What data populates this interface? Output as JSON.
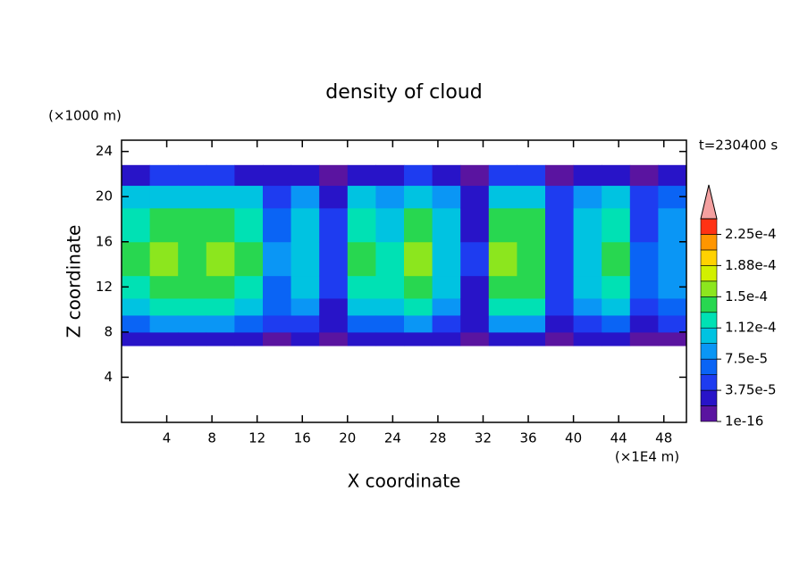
{
  "chart_data": {
    "type": "contour",
    "title": "density of cloud",
    "x_label": "X coordinate",
    "y_label": "Z coordinate",
    "x_unit": "(×1E4 m)",
    "y_unit": "(×1000 m)",
    "annotation": "t=230400 s",
    "xlim": [
      0,
      50
    ],
    "ylim": [
      0,
      25
    ],
    "xticks": [
      4,
      8,
      12,
      16,
      20,
      24,
      28,
      32,
      36,
      40,
      44,
      48
    ],
    "yticks": [
      4,
      8,
      12,
      16,
      20,
      24
    ],
    "x_edges": [
      0,
      2.5,
      5,
      7.5,
      10,
      12.5,
      15,
      17.5,
      20,
      22.5,
      25,
      27.5,
      30,
      32.5,
      35,
      37.5,
      40,
      42.5,
      45,
      47.5,
      50
    ],
    "y_edges": [
      6.8,
      8,
      9.5,
      11,
      13,
      16,
      19,
      21,
      22.8
    ],
    "z": [
      [
        2.7e-05,
        7.2e-05,
        0.000108,
        0.00013,
        0.00014,
        0.000126,
        9.9e-05,
        3.6e-05
      ],
      [
        3e-05,
        8e-05,
        0.00012,
        0.000145,
        0.000155,
        0.00014,
        0.00011,
        4e-05
      ],
      [
        2.8e-05,
        7.6e-05,
        0.000114,
        0.000138,
        0.000147,
        0.000133,
        0.000105,
        3.8e-05
      ],
      [
        3e-05,
        8e-05,
        0.00012,
        0.000145,
        0.000155,
        0.00014,
        0.00011,
        4e-05
      ],
      [
        2.7e-05,
        7.2e-05,
        0.000108,
        0.00013,
        0.00014,
        0.000126,
        9.9e-05,
        3.6e-05
      ],
      [
        1.5e-05,
        4e-05,
        6e-05,
        7.3e-05,
        7.8e-05,
        7e-05,
        5.5e-05,
        2e-05
      ],
      [
        2.1e-05,
        5.6e-05,
        8.4e-05,
        0.000102,
        0.000109,
        9.8e-05,
        7.7e-05,
        2.8e-05
      ],
      [
        9e-06,
        2.4e-05,
        3.6e-05,
        4.4e-05,
        4.7e-05,
        4.2e-05,
        3.3e-05,
        1.2e-05
      ],
      [
        2.7e-05,
        7.2e-05,
        0.000108,
        0.00013,
        0.00014,
        0.000126,
        9.9e-05,
        3.6e-05
      ],
      [
        2.4e-05,
        6.4e-05,
        9.6e-05,
        0.000116,
        0.000124,
        0.000112,
        8.8e-05,
        3.2e-05
      ],
      [
        3e-05,
        8e-05,
        0.00012,
        0.000145,
        0.000155,
        0.00014,
        0.00011,
        4e-05
      ],
      [
        2.1e-05,
        5.6e-05,
        8.4e-05,
        0.000102,
        0.000109,
        9.8e-05,
        7.7e-05,
        2.8e-05
      ],
      [
        8e-06,
        2e-05,
        3e-05,
        3.6e-05,
        3.9e-05,
        3.5e-05,
        2.8e-05,
        1e-05
      ],
      [
        3e-05,
        8e-05,
        0.00012,
        0.000145,
        0.000155,
        0.00014,
        0.00011,
        4e-05
      ],
      [
        2.8e-05,
        7.6e-05,
        0.000114,
        0.000138,
        0.000147,
        0.000133,
        0.000105,
        3.8e-05
      ],
      [
        1.1e-05,
        2.8e-05,
        4.2e-05,
        5.1e-05,
        5.4e-05,
        4.9e-05,
        3.9e-05,
        1.4e-05
      ],
      [
        2.1e-05,
        5.6e-05,
        8.4e-05,
        0.000102,
        0.000109,
        9.8e-05,
        7.7e-05,
        2.8e-05
      ],
      [
        2.6e-05,
        6.8e-05,
        0.000102,
        0.000123,
        0.000132,
        0.000119,
        9.4e-05,
        3.4e-05
      ],
      [
        1.2e-05,
        3.2e-05,
        4.8e-05,
        5.8e-05,
        6.2e-05,
        5.6e-05,
        4.4e-05,
        1.6e-05
      ],
      [
        1.8e-05,
        4.8e-05,
        7.2e-05,
        8.7e-05,
        9.3e-05,
        8.4e-05,
        6.6e-05,
        2.4e-05
      ]
    ],
    "colorbar": {
      "levels": [
        1e-16,
        1.875e-05,
        3.75e-05,
        5.625e-05,
        7.5e-05,
        9.375e-05,
        0.0001125,
        0.00013125,
        0.00015,
        0.00016875,
        0.0001875,
        0.00020625,
        0.000225,
        0.00024375
      ],
      "colors": [
        "#5a14a0",
        "#2814c8",
        "#1e3cf0",
        "#0a64f5",
        "#0a96f5",
        "#00c3e1",
        "#00e1b4",
        "#28d750",
        "#8ce61e",
        "#d2f000",
        "#ffd200",
        "#ff9600",
        "#ff3214"
      ],
      "extend_color": "#f4a0a0",
      "ticks": [
        {
          "value": 1e-16,
          "label": "1e-16"
        },
        {
          "value": 3.75e-05,
          "label": "3.75e-5"
        },
        {
          "value": 7.5e-05,
          "label": "7.5e-5"
        },
        {
          "value": 0.0001125,
          "label": "1.12e-4"
        },
        {
          "value": 0.00015,
          "label": "1.5e-4"
        },
        {
          "value": 0.0001875,
          "label": "1.88e-4"
        },
        {
          "value": 0.000225,
          "label": "2.25e-4"
        }
      ]
    }
  }
}
